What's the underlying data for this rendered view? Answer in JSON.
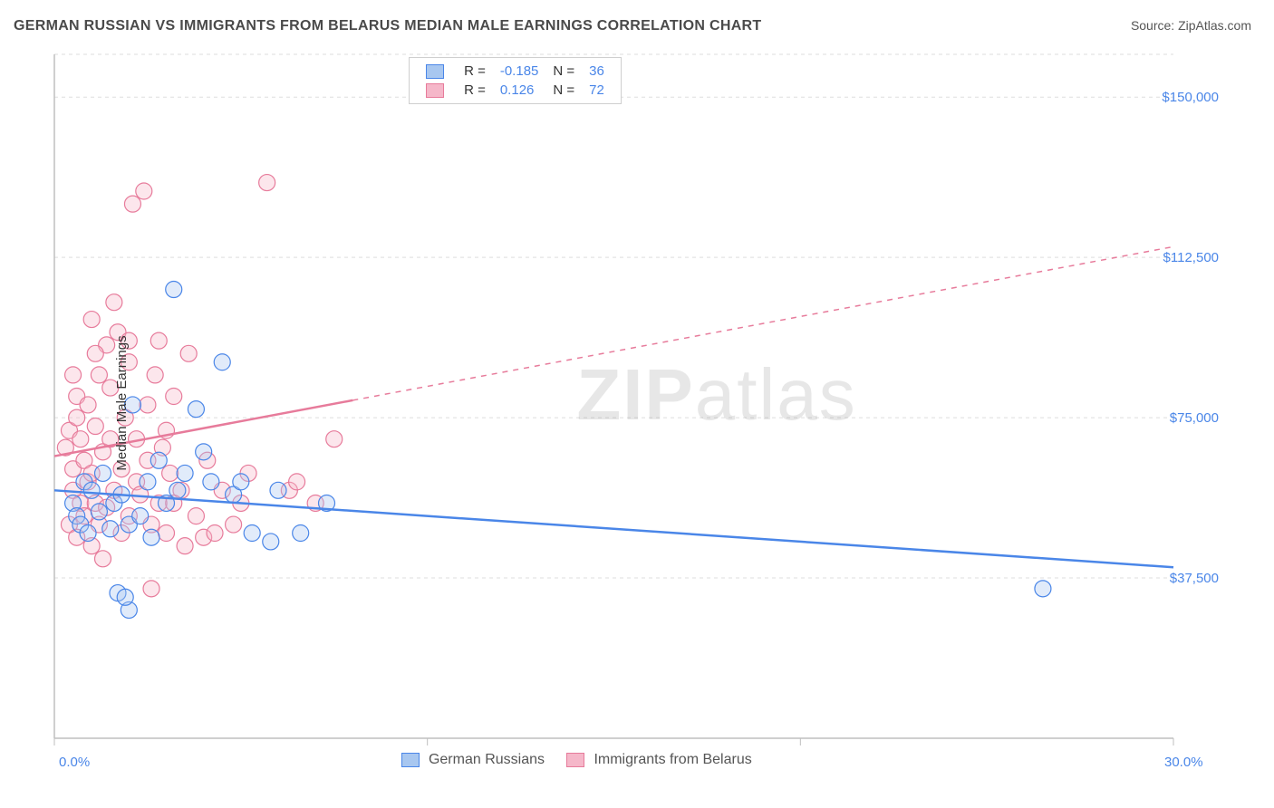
{
  "title": "GERMAN RUSSIAN VS IMMIGRANTS FROM BELARUS MEDIAN MALE EARNINGS CORRELATION CHART",
  "source_label": "Source: ZipAtlas.com",
  "ylabel": "Median Male Earnings",
  "watermark": {
    "bold": "ZIP",
    "rest": "atlas"
  },
  "chart": {
    "type": "scatter-with-trend",
    "background_color": "#ffffff",
    "grid_color": "#dddddd",
    "grid_dash": "4,4",
    "axis_color": "#bfbfbf",
    "xlim": [
      0,
      30
    ],
    "ylim": [
      0,
      160000
    ],
    "x_ticks": [
      0,
      10,
      20,
      30
    ],
    "x_tick_labels": [
      "0.0%",
      "",
      "",
      "30.0%"
    ],
    "y_gridlines": [
      37500,
      75000,
      112500,
      150000,
      160000
    ],
    "y_grid_labels": [
      "$37,500",
      "$75,000",
      "$112,500",
      "$150,000",
      ""
    ],
    "label_color": "#4a86e8",
    "label_fontsize": 15,
    "marker_radius": 9,
    "marker_stroke_width": 1.2,
    "marker_fill_opacity": 0.35,
    "trend_solid_width": 2.5,
    "trend_dash": "6,6"
  },
  "series": {
    "blue": {
      "name": "German Russians",
      "color_stroke": "#4a86e8",
      "color_fill": "#a8c7f0",
      "R": "-0.185",
      "N": "36",
      "trend": {
        "x1": 0,
        "y1": 58000,
        "x2": 30,
        "y2": 40000,
        "solid_until_x": 30
      },
      "points": [
        [
          0.5,
          55000
        ],
        [
          0.6,
          52000
        ],
        [
          0.7,
          50000
        ],
        [
          0.8,
          60000
        ],
        [
          0.9,
          48000
        ],
        [
          1.0,
          58000
        ],
        [
          1.2,
          53000
        ],
        [
          1.3,
          62000
        ],
        [
          1.5,
          49000
        ],
        [
          1.6,
          55000
        ],
        [
          1.8,
          57000
        ],
        [
          2.0,
          50000
        ],
        [
          2.1,
          78000
        ],
        [
          2.3,
          52000
        ],
        [
          2.5,
          60000
        ],
        [
          2.6,
          47000
        ],
        [
          2.8,
          65000
        ],
        [
          3.0,
          55000
        ],
        [
          3.2,
          105000
        ],
        [
          3.3,
          58000
        ],
        [
          3.5,
          62000
        ],
        [
          3.8,
          77000
        ],
        [
          4.0,
          67000
        ],
        [
          4.5,
          88000
        ],
        [
          4.8,
          57000
        ],
        [
          5.0,
          60000
        ],
        [
          5.3,
          48000
        ],
        [
          5.8,
          46000
        ],
        [
          6.0,
          58000
        ],
        [
          6.6,
          48000
        ],
        [
          7.3,
          55000
        ],
        [
          1.7,
          34000
        ],
        [
          2.0,
          30000
        ],
        [
          1.9,
          33000
        ],
        [
          26.5,
          35000
        ],
        [
          4.2,
          60000
        ]
      ]
    },
    "pink": {
      "name": "Immigrants from Belarus",
      "color_stroke": "#e77b9b",
      "color_fill": "#f5b7c9",
      "R": "0.126",
      "N": "72",
      "trend": {
        "x1": 0,
        "y1": 66000,
        "x2": 30,
        "y2": 115000,
        "solid_until_x": 8
      },
      "points": [
        [
          0.3,
          68000
        ],
        [
          0.4,
          72000
        ],
        [
          0.5,
          63000
        ],
        [
          0.5,
          58000
        ],
        [
          0.6,
          75000
        ],
        [
          0.6,
          80000
        ],
        [
          0.7,
          55000
        ],
        [
          0.7,
          70000
        ],
        [
          0.8,
          65000
        ],
        [
          0.8,
          52000
        ],
        [
          0.9,
          78000
        ],
        [
          0.9,
          60000
        ],
        [
          1.0,
          98000
        ],
        [
          1.0,
          62000
        ],
        [
          1.1,
          55000
        ],
        [
          1.1,
          73000
        ],
        [
          1.2,
          85000
        ],
        [
          1.2,
          50000
        ],
        [
          1.3,
          67000
        ],
        [
          1.4,
          92000
        ],
        [
          1.4,
          54000
        ],
        [
          1.5,
          70000
        ],
        [
          1.5,
          82000
        ],
        [
          1.6,
          58000
        ],
        [
          1.7,
          95000
        ],
        [
          1.8,
          63000
        ],
        [
          1.8,
          48000
        ],
        [
          1.9,
          75000
        ],
        [
          2.0,
          88000
        ],
        [
          2.0,
          52000
        ],
        [
          2.1,
          125000
        ],
        [
          2.2,
          60000
        ],
        [
          2.2,
          70000
        ],
        [
          2.3,
          57000
        ],
        [
          2.4,
          128000
        ],
        [
          2.5,
          65000
        ],
        [
          2.5,
          78000
        ],
        [
          2.6,
          50000
        ],
        [
          2.7,
          85000
        ],
        [
          2.8,
          55000
        ],
        [
          2.9,
          68000
        ],
        [
          3.0,
          72000
        ],
        [
          3.0,
          48000
        ],
        [
          3.1,
          62000
        ],
        [
          3.2,
          80000
        ],
        [
          3.4,
          58000
        ],
        [
          3.5,
          45000
        ],
        [
          3.6,
          90000
        ],
        [
          3.8,
          52000
        ],
        [
          4.0,
          47000
        ],
        [
          4.1,
          65000
        ],
        [
          4.3,
          48000
        ],
        [
          4.5,
          58000
        ],
        [
          4.8,
          50000
        ],
        [
          5.7,
          130000
        ],
        [
          5.0,
          55000
        ],
        [
          5.2,
          62000
        ],
        [
          6.3,
          58000
        ],
        [
          6.5,
          60000
        ],
        [
          7.0,
          55000
        ],
        [
          7.5,
          70000
        ],
        [
          2.6,
          35000
        ],
        [
          1.3,
          42000
        ],
        [
          0.4,
          50000
        ],
        [
          0.5,
          85000
        ],
        [
          1.0,
          45000
        ],
        [
          1.6,
          102000
        ],
        [
          2.0,
          93000
        ],
        [
          2.8,
          93000
        ],
        [
          3.2,
          55000
        ],
        [
          1.1,
          90000
        ],
        [
          0.6,
          47000
        ]
      ]
    }
  },
  "legend_top": {
    "R_label": "R =",
    "N_label": "N ="
  },
  "legend_bottom": {
    "items": [
      {
        "key": "blue",
        "label": "German Russians"
      },
      {
        "key": "pink",
        "label": "Immigrants from Belarus"
      }
    ]
  }
}
